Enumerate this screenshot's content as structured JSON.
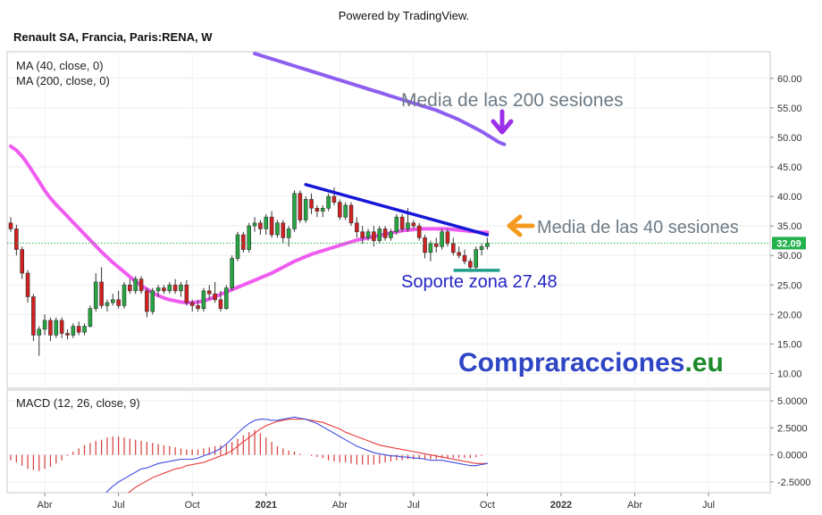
{
  "header": {
    "powered_by": "Powered by TradingView.",
    "symbol_title": "Renault SA, Francia, Paris:RENA, W"
  },
  "legend": {
    "ma40": "MA (40, close, 0)",
    "ma200": "MA (200, close, 0)",
    "macd": "MACD (12, 26, close, 9)"
  },
  "colors": {
    "up": "#26a641",
    "down": "#d32020",
    "ma40": "#f05cf0",
    "ma200": "#8e5ef0",
    "trendline": "#1616d8",
    "support": "#1f9e8a",
    "macd_line": "#3d4fe0",
    "signal_line": "#e83c3c",
    "histogram": "#d63b3b",
    "last_price_bg": "#22b24c",
    "brand_blue": "#2e45c4",
    "brand_green": "#1e8a2a",
    "annotation_gray": "#6d7a84",
    "arrow_purple": "#9b2ee8",
    "arrow_orange": "#f59a1e"
  },
  "annotations": {
    "ma200_label": "Media   de las 200 sesiones",
    "ma40_label": "Media de las 40 sesiones",
    "support_label": "Soporte zona 27.48",
    "brand_main": "Compraracciones",
    "brand_tld": ".eu"
  },
  "last_price": "32.09",
  "chart_data": [
    {
      "type": "candlestick",
      "title": "Renault SA, Francia, Paris:RENA, W",
      "y_ticks": [
        "10.00",
        "15.00",
        "20.00",
        "25.00",
        "30.00",
        "35.00",
        "40.00",
        "45.00",
        "50.00",
        "55.00",
        "60.00"
      ],
      "ylim": [
        7.5,
        64.5
      ],
      "x_ticks": [
        "Abr",
        "Jul",
        "Oct",
        "2021",
        "Abr",
        "Jul",
        "Oct",
        "2022",
        "Abr",
        "Jul"
      ],
      "x_tick_index": [
        6,
        19,
        32,
        45,
        58,
        71,
        84,
        97,
        110,
        123
      ],
      "candles": [
        {
          "o": 35.5,
          "h": 36.5,
          "l": 34.0,
          "c": 34.5
        },
        {
          "o": 34.5,
          "h": 35.2,
          "l": 30.0,
          "c": 31.0
        },
        {
          "o": 31.0,
          "h": 31.5,
          "l": 26.0,
          "c": 27.0
        },
        {
          "o": 27.0,
          "h": 27.5,
          "l": 22.0,
          "c": 23.0
        },
        {
          "o": 23.0,
          "h": 23.5,
          "l": 15.5,
          "c": 16.5
        },
        {
          "o": 16.5,
          "h": 18.0,
          "l": 13.0,
          "c": 17.5
        },
        {
          "o": 17.5,
          "h": 20.0,
          "l": 16.5,
          "c": 19.0
        },
        {
          "o": 19.0,
          "h": 19.5,
          "l": 15.5,
          "c": 16.5
        },
        {
          "o": 16.5,
          "h": 19.5,
          "l": 16.0,
          "c": 19.0
        },
        {
          "o": 19.0,
          "h": 19.5,
          "l": 16.0,
          "c": 16.8
        },
        {
          "o": 16.8,
          "h": 17.5,
          "l": 15.8,
          "c": 16.5
        },
        {
          "o": 16.5,
          "h": 18.5,
          "l": 16.0,
          "c": 18.0
        },
        {
          "o": 18.0,
          "h": 18.8,
          "l": 16.5,
          "c": 17.0
        },
        {
          "o": 17.0,
          "h": 18.5,
          "l": 16.5,
          "c": 18.0
        },
        {
          "o": 18.0,
          "h": 21.5,
          "l": 17.8,
          "c": 21.0
        },
        {
          "o": 21.0,
          "h": 27.0,
          "l": 20.5,
          "c": 25.5
        },
        {
          "o": 25.5,
          "h": 28.0,
          "l": 21.0,
          "c": 21.5
        },
        {
          "o": 21.5,
          "h": 22.5,
          "l": 20.5,
          "c": 22.0
        },
        {
          "o": 22.0,
          "h": 23.5,
          "l": 21.5,
          "c": 22.5
        },
        {
          "o": 22.5,
          "h": 24.0,
          "l": 21.0,
          "c": 21.5
        },
        {
          "o": 21.5,
          "h": 25.5,
          "l": 21.0,
          "c": 25.0
        },
        {
          "o": 25.0,
          "h": 26.0,
          "l": 23.5,
          "c": 24.0
        },
        {
          "o": 24.0,
          "h": 26.5,
          "l": 23.5,
          "c": 26.0
        },
        {
          "o": 26.0,
          "h": 26.5,
          "l": 23.5,
          "c": 24.0
        },
        {
          "o": 24.0,
          "h": 24.5,
          "l": 19.5,
          "c": 20.5
        },
        {
          "o": 20.5,
          "h": 24.5,
          "l": 20.0,
          "c": 24.0
        },
        {
          "o": 24.0,
          "h": 25.0,
          "l": 23.0,
          "c": 24.5
        },
        {
          "o": 24.5,
          "h": 25.0,
          "l": 23.5,
          "c": 24.0
        },
        {
          "o": 24.0,
          "h": 25.5,
          "l": 23.5,
          "c": 25.0
        },
        {
          "o": 25.0,
          "h": 26.0,
          "l": 23.5,
          "c": 24.0
        },
        {
          "o": 24.0,
          "h": 25.5,
          "l": 23.0,
          "c": 25.0
        },
        {
          "o": 25.0,
          "h": 25.8,
          "l": 21.5,
          "c": 22.0
        },
        {
          "o": 22.0,
          "h": 22.5,
          "l": 20.5,
          "c": 21.5
        },
        {
          "o": 21.5,
          "h": 22.5,
          "l": 20.5,
          "c": 21.0
        },
        {
          "o": 21.0,
          "h": 24.5,
          "l": 20.5,
          "c": 24.0
        },
        {
          "o": 24.0,
          "h": 25.0,
          "l": 22.5,
          "c": 23.5
        },
        {
          "o": 23.5,
          "h": 25.5,
          "l": 22.0,
          "c": 22.5
        },
        {
          "o": 22.5,
          "h": 24.0,
          "l": 20.5,
          "c": 21.0
        },
        {
          "o": 21.0,
          "h": 25.0,
          "l": 20.8,
          "c": 24.5
        },
        {
          "o": 24.5,
          "h": 30.0,
          "l": 24.0,
          "c": 29.5
        },
        {
          "o": 29.5,
          "h": 34.0,
          "l": 29.0,
          "c": 33.5
        },
        {
          "o": 33.5,
          "h": 34.0,
          "l": 30.5,
          "c": 31.0
        },
        {
          "o": 31.0,
          "h": 35.5,
          "l": 30.5,
          "c": 35.0
        },
        {
          "o": 35.0,
          "h": 36.5,
          "l": 34.0,
          "c": 35.5
        },
        {
          "o": 35.5,
          "h": 36.0,
          "l": 33.5,
          "c": 34.5
        },
        {
          "o": 34.5,
          "h": 37.0,
          "l": 33.5,
          "c": 36.5
        },
        {
          "o": 36.5,
          "h": 37.5,
          "l": 33.0,
          "c": 33.5
        },
        {
          "o": 33.5,
          "h": 36.0,
          "l": 33.0,
          "c": 35.5
        },
        {
          "o": 35.5,
          "h": 36.0,
          "l": 32.0,
          "c": 33.0
        },
        {
          "o": 33.0,
          "h": 35.0,
          "l": 31.5,
          "c": 34.5
        },
        {
          "o": 34.5,
          "h": 41.0,
          "l": 34.0,
          "c": 40.5
        },
        {
          "o": 40.5,
          "h": 41.0,
          "l": 35.5,
          "c": 36.0
        },
        {
          "o": 36.0,
          "h": 40.0,
          "l": 35.5,
          "c": 39.5
        },
        {
          "o": 39.5,
          "h": 40.5,
          "l": 37.0,
          "c": 38.0
        },
        {
          "o": 38.0,
          "h": 38.5,
          "l": 36.5,
          "c": 37.5
        },
        {
          "o": 37.5,
          "h": 38.5,
          "l": 36.5,
          "c": 38.0
        },
        {
          "o": 38.0,
          "h": 40.5,
          "l": 37.5,
          "c": 40.0
        },
        {
          "o": 40.0,
          "h": 41.5,
          "l": 38.5,
          "c": 39.0
        },
        {
          "o": 39.0,
          "h": 39.5,
          "l": 36.0,
          "c": 36.5
        },
        {
          "o": 36.5,
          "h": 39.0,
          "l": 36.0,
          "c": 38.5
        },
        {
          "o": 38.5,
          "h": 39.0,
          "l": 35.0,
          "c": 35.5
        },
        {
          "o": 35.5,
          "h": 36.5,
          "l": 33.0,
          "c": 34.0
        },
        {
          "o": 34.0,
          "h": 35.0,
          "l": 32.0,
          "c": 33.0
        },
        {
          "o": 33.0,
          "h": 34.5,
          "l": 32.5,
          "c": 34.0
        },
        {
          "o": 34.0,
          "h": 35.0,
          "l": 31.5,
          "c": 32.5
        },
        {
          "o": 32.5,
          "h": 35.0,
          "l": 32.0,
          "c": 34.5
        },
        {
          "o": 34.5,
          "h": 35.0,
          "l": 32.5,
          "c": 33.0
        },
        {
          "o": 33.0,
          "h": 34.5,
          "l": 32.5,
          "c": 34.0
        },
        {
          "o": 34.0,
          "h": 37.0,
          "l": 33.5,
          "c": 36.5
        },
        {
          "o": 36.5,
          "h": 37.0,
          "l": 34.0,
          "c": 34.5
        },
        {
          "o": 34.5,
          "h": 38.0,
          "l": 34.0,
          "c": 35.5
        },
        {
          "o": 35.5,
          "h": 36.0,
          "l": 34.5,
          "c": 35.0
        },
        {
          "o": 35.0,
          "h": 35.5,
          "l": 32.5,
          "c": 33.0
        },
        {
          "o": 33.0,
          "h": 33.5,
          "l": 29.5,
          "c": 30.5
        },
        {
          "o": 30.5,
          "h": 32.5,
          "l": 29.0,
          "c": 32.0
        },
        {
          "o": 32.0,
          "h": 33.0,
          "l": 30.5,
          "c": 31.5
        },
        {
          "o": 31.5,
          "h": 34.5,
          "l": 31.0,
          "c": 34.0
        },
        {
          "o": 34.0,
          "h": 34.5,
          "l": 31.5,
          "c": 32.0
        },
        {
          "o": 32.0,
          "h": 33.0,
          "l": 30.0,
          "c": 30.5
        },
        {
          "o": 30.5,
          "h": 31.5,
          "l": 29.5,
          "c": 30.0
        },
        {
          "o": 30.0,
          "h": 31.0,
          "l": 28.5,
          "c": 29.0
        },
        {
          "o": 29.0,
          "h": 29.5,
          "l": 27.5,
          "c": 28.0
        },
        {
          "o": 28.0,
          "h": 31.5,
          "l": 27.5,
          "c": 31.0
        },
        {
          "o": 31.0,
          "h": 32.0,
          "l": 30.0,
          "c": 31.5
        },
        {
          "o": 31.5,
          "h": 33.0,
          "l": 31.0,
          "c": 32.09
        }
      ],
      "ma40": [
        48.5,
        47.8,
        46.8,
        45.5,
        44.0,
        42.5,
        41.0,
        39.7,
        38.6,
        37.6,
        36.6,
        35.6,
        34.6,
        33.6,
        32.6,
        31.6,
        30.6,
        29.7,
        28.8,
        28.0,
        27.2,
        26.4,
        25.6,
        24.9,
        24.3,
        23.7,
        23.2,
        22.8,
        22.5,
        22.3,
        22.1,
        22.0,
        22.0,
        22.1,
        22.3,
        22.6,
        23.0,
        23.4,
        23.8,
        24.2,
        24.6,
        25.0,
        25.4,
        25.8,
        26.2,
        26.6,
        27.0,
        27.5,
        28.0,
        28.5,
        29.0,
        29.4,
        29.8,
        30.2,
        30.5,
        30.8,
        31.1,
        31.4,
        31.7,
        32.0,
        32.3,
        32.6,
        32.8,
        33.0,
        33.2,
        33.4,
        33.6,
        33.8,
        34.0,
        34.2,
        34.3,
        34.4,
        34.5,
        34.5,
        34.5,
        34.5,
        34.5,
        34.5,
        34.4,
        34.3,
        34.2,
        34.1,
        34.0,
        33.9,
        33.9
      ],
      "ma200": [
        null,
        null,
        null,
        null,
        null,
        null,
        null,
        null,
        null,
        null,
        null,
        null,
        null,
        null,
        null,
        null,
        null,
        null,
        null,
        null,
        null,
        null,
        null,
        null,
        null,
        null,
        null,
        null,
        null,
        null,
        null,
        null,
        null,
        null,
        null,
        null,
        null,
        null,
        null,
        null,
        null,
        null,
        null,
        64.2,
        63.9,
        63.6,
        63.3,
        63.0,
        62.7,
        62.4,
        62.1,
        61.8,
        61.5,
        61.2,
        60.9,
        60.6,
        60.3,
        60.0,
        59.7,
        59.4,
        59.1,
        58.8,
        58.5,
        58.2,
        57.9,
        57.6,
        57.3,
        57.0,
        56.7,
        56.4,
        56.1,
        55.8,
        55.5,
        55.2,
        54.9,
        54.6,
        54.2,
        53.8,
        53.4,
        53.0,
        52.5,
        52.0,
        51.5,
        51.0,
        50.4,
        49.8,
        49.2,
        48.8
      ],
      "trendline": {
        "from": {
          "index": 52,
          "value": 42.0
        },
        "to": {
          "index": 84,
          "value": 33.5
        }
      },
      "support": {
        "from_index": 79,
        "to_index": 84,
        "value": 27.48
      }
    },
    {
      "type": "macd",
      "title": "MACD (12, 26, close, 9)",
      "y_ticks": [
        "5.0000",
        "2.5000",
        "0.0000",
        "-2.5000"
      ],
      "ylim": [
        -3.5,
        6.0
      ],
      "macd": [
        -4.5,
        -5.0,
        -5.6,
        -6.2,
        -6.8,
        -7.2,
        -7.5,
        -7.6,
        -7.5,
        -7.3,
        -7.0,
        -6.6,
        -6.2,
        -5.7,
        -5.2,
        -4.6,
        -4.0,
        -3.4,
        -2.9,
        -2.5,
        -2.2,
        -1.9,
        -1.6,
        -1.3,
        -1.2,
        -1.0,
        -0.8,
        -0.7,
        -0.6,
        -0.5,
        -0.4,
        -0.4,
        -0.4,
        -0.3,
        -0.1,
        0.1,
        0.3,
        0.6,
        1.0,
        1.5,
        2.0,
        2.5,
        2.9,
        3.2,
        3.3,
        3.3,
        3.2,
        3.2,
        3.3,
        3.4,
        3.5,
        3.4,
        3.3,
        3.1,
        2.9,
        2.6,
        2.3,
        2.0,
        1.7,
        1.4,
        1.1,
        0.8,
        0.6,
        0.4,
        0.2,
        0.1,
        0.0,
        -0.1,
        -0.1,
        -0.2,
        -0.2,
        -0.3,
        -0.3,
        -0.4,
        -0.5,
        -0.5,
        -0.5,
        -0.6,
        -0.7,
        -0.8,
        -0.9,
        -1.0,
        -1.0,
        -0.9,
        -0.8
      ],
      "signal": [
        -3.8,
        -4.2,
        -4.6,
        -5.0,
        -5.4,
        -5.8,
        -6.1,
        -6.4,
        -6.6,
        -6.7,
        -6.8,
        -6.7,
        -6.6,
        -6.4,
        -6.1,
        -5.8,
        -5.4,
        -5.0,
        -4.6,
        -4.2,
        -3.8,
        -3.4,
        -3.0,
        -2.7,
        -2.4,
        -2.1,
        -1.9,
        -1.7,
        -1.5,
        -1.3,
        -1.2,
        -1.0,
        -0.9,
        -0.8,
        -0.7,
        -0.5,
        -0.3,
        -0.1,
        0.1,
        0.4,
        0.8,
        1.2,
        1.6,
        2.0,
        2.4,
        2.7,
        2.9,
        3.1,
        3.2,
        3.3,
        3.3,
        3.3,
        3.3,
        3.2,
        3.1,
        3.0,
        2.8,
        2.6,
        2.4,
        2.1,
        1.9,
        1.7,
        1.5,
        1.3,
        1.1,
        0.9,
        0.8,
        0.7,
        0.6,
        0.5,
        0.4,
        0.3,
        0.2,
        0.1,
        0.0,
        -0.1,
        -0.2,
        -0.3,
        -0.4,
        -0.5,
        -0.6,
        -0.7,
        -0.8,
        -0.8,
        -0.8
      ],
      "histogram": [
        -0.5,
        -0.7,
        -1.0,
        -1.3,
        -1.4,
        -1.5,
        -1.3,
        -1.1,
        -0.8,
        -0.5,
        -0.1,
        0.3,
        0.6,
        0.9,
        1.1,
        1.3,
        1.4,
        1.6,
        1.7,
        1.7,
        1.6,
        1.5,
        1.4,
        1.3,
        1.2,
        1.1,
        1.0,
        0.9,
        0.8,
        0.7,
        0.6,
        0.5,
        0.5,
        0.5,
        0.6,
        0.7,
        0.8,
        0.9,
        1.0,
        1.2,
        1.5,
        1.8,
        2.1,
        2.3,
        2.0,
        1.6,
        1.2,
        0.8,
        0.6,
        0.4,
        0.3,
        0.1,
        0.0,
        -0.1,
        -0.2,
        -0.3,
        -0.5,
        -0.6,
        -0.7,
        -0.7,
        -0.8,
        -0.9,
        -0.9,
        -0.9,
        -0.9,
        -0.8,
        -0.7,
        -0.6,
        -0.5,
        -0.5,
        -0.4,
        -0.4,
        -0.4,
        -0.4,
        -0.4,
        -0.4,
        -0.3,
        -0.3,
        -0.3,
        -0.3,
        -0.3,
        -0.3,
        -0.2,
        -0.1,
        0.0
      ]
    }
  ]
}
